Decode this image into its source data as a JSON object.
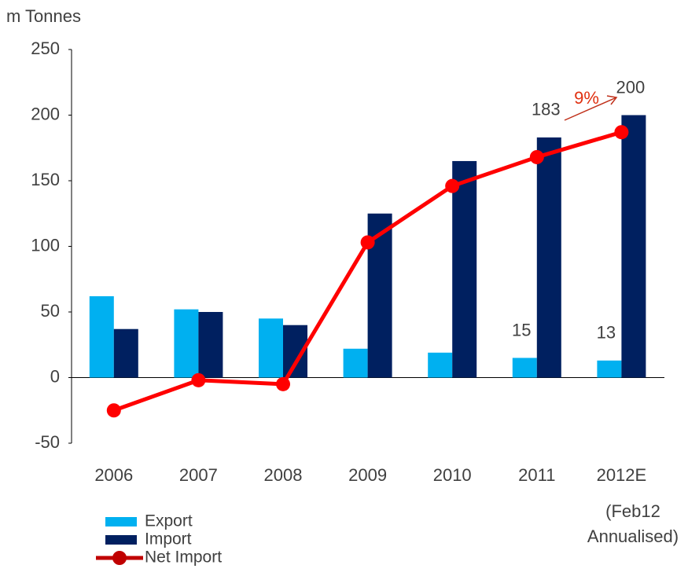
{
  "chart_data": {
    "type": "bar_line",
    "y_axis_label": "m Tonnes",
    "categories": [
      "2006",
      "2007",
      "2008",
      "2009",
      "2010",
      "2011",
      "2012E"
    ],
    "category_note": [
      "(Feb12",
      "Annualised)"
    ],
    "ylim": [
      -50,
      250
    ],
    "yticks": [
      -50,
      0,
      50,
      100,
      150,
      200,
      250
    ],
    "grid": false,
    "legend": "bottom-left",
    "series": [
      {
        "name": "Export",
        "type": "bar",
        "color": "#00b0f0",
        "values": [
          62,
          52,
          45,
          22,
          19,
          15,
          13
        ],
        "value_labels": [
          null,
          null,
          null,
          null,
          null,
          "15",
          "13"
        ]
      },
      {
        "name": "Import",
        "type": "bar",
        "color": "#002060",
        "values": [
          37,
          50,
          40,
          125,
          165,
          183,
          200
        ],
        "value_labels": [
          null,
          null,
          null,
          null,
          null,
          "183",
          "200"
        ]
      },
      {
        "name": "Net Import",
        "type": "line",
        "color": "#ff0000",
        "values": [
          -25,
          -2,
          -5,
          103,
          146,
          168,
          187
        ]
      }
    ],
    "annotations": [
      {
        "text": "9%",
        "color": "#e03010"
      }
    ]
  }
}
